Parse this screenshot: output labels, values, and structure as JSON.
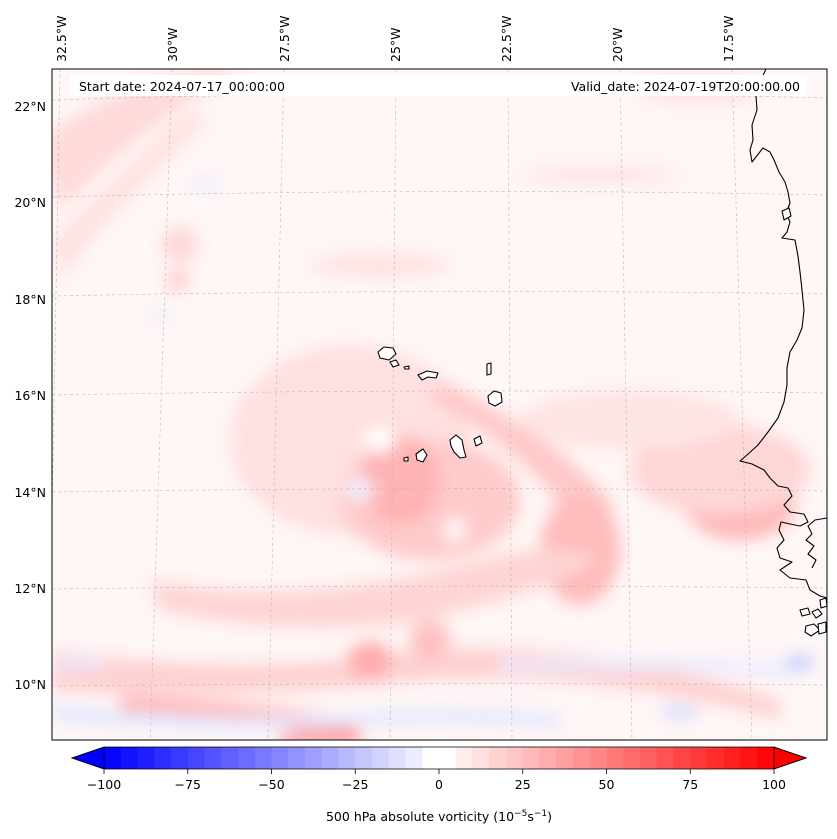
{
  "map": {
    "start_label": "Start date: 2024-07-17_00:00:00",
    "valid_label": "Valid_date: 2024-07-19T20:00:00.00",
    "lon_labels": [
      "32.5°W",
      "30°W",
      "27.5°W",
      "25°W",
      "22.5°W",
      "20°W",
      "17.5°W"
    ],
    "lat_labels": [
      "22°N",
      "20°N",
      "18°N",
      "16°N",
      "14°N",
      "12°N",
      "10°N"
    ],
    "features": [
      "Cabo Verde islands",
      "West African coastline"
    ]
  },
  "colorbar": {
    "min": -100,
    "max": 100,
    "tick_values": [
      -100,
      -75,
      -50,
      -25,
      0,
      25,
      50,
      75,
      100
    ],
    "tick_labels": [
      "−100",
      "−75",
      "−50",
      "−25",
      "0",
      "25",
      "50",
      "75",
      "100"
    ],
    "label_text": "500 hPa absolute vorticity (10",
    "label_exp1": "−5",
    "label_mid": "s",
    "label_exp2": "−1",
    "label_end": ")",
    "color_min": "#0000ff",
    "color_mid": "#ffffff",
    "color_max": "#ff0000"
  }
}
